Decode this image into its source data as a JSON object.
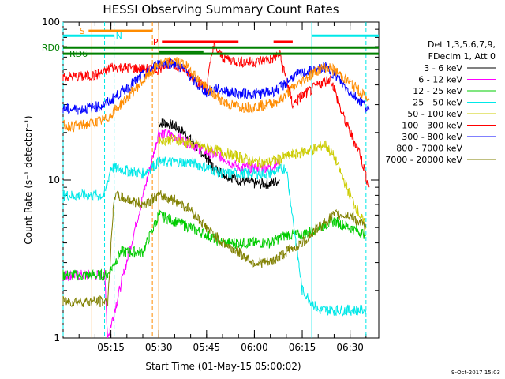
{
  "chart_data": {
    "type": "line",
    "title": "HESSI Observing Summary Count Rates",
    "xlabel": "Start Time (01-May-15 05:00:02)",
    "ylabel": "Count Rate (s⁻¹ detector⁻¹)",
    "y_scale": "log",
    "ylim": [
      1,
      100
    ],
    "xlim_minutes": [
      0,
      99
    ],
    "x_ticks": [
      {
        "label": "05:15",
        "minutes": 15
      },
      {
        "label": "05:30",
        "minutes": 30
      },
      {
        "label": "05:45",
        "minutes": 45
      },
      {
        "label": "06:00",
        "minutes": 60
      },
      {
        "label": "06:15",
        "minutes": 75
      },
      {
        "label": "06:30",
        "minutes": 90
      }
    ],
    "y_ticks": [
      {
        "label": "1",
        "value": 1
      },
      {
        "label": "10",
        "value": 10
      },
      {
        "label": "100",
        "value": 100
      }
    ],
    "legend_header": [
      "Det 1,3,5,6,7,9,",
      "FDecim 1, Att 0"
    ],
    "legend_position": "right",
    "series": [
      {
        "name": "3 - 6 keV",
        "color": "#000000",
        "points": [
          [
            30,
            23
          ],
          [
            32,
            23
          ],
          [
            35,
            22
          ],
          [
            38,
            20
          ],
          [
            40,
            18
          ],
          [
            42,
            16
          ],
          [
            45,
            14
          ],
          [
            47,
            12
          ],
          [
            50,
            11
          ],
          [
            55,
            10
          ],
          [
            60,
            9.5
          ],
          [
            65,
            9.5
          ],
          [
            68,
            10
          ]
        ]
      },
      {
        "name": "6 - 12 keV",
        "color": "#ff00ff",
        "points": [
          [
            0,
            2.5
          ],
          [
            5,
            2.5
          ],
          [
            10,
            2.5
          ],
          [
            13,
            2.5
          ],
          [
            14,
            1
          ],
          [
            30,
            20
          ],
          [
            35,
            19
          ],
          [
            40,
            17
          ],
          [
            45,
            15
          ],
          [
            50,
            14
          ],
          [
            55,
            12
          ],
          [
            60,
            12
          ],
          [
            65,
            12
          ],
          [
            68,
            13
          ]
        ]
      },
      {
        "name": "12 - 25 keV",
        "color": "#00cc00",
        "points": [
          [
            0,
            2.5
          ],
          [
            5,
            2.5
          ],
          [
            10,
            2.5
          ],
          [
            14,
            2.5
          ],
          [
            18,
            3.5
          ],
          [
            25,
            3.5
          ],
          [
            30,
            6
          ],
          [
            35,
            5.5
          ],
          [
            40,
            5
          ],
          [
            45,
            4.5
          ],
          [
            50,
            4
          ],
          [
            55,
            4
          ],
          [
            60,
            4
          ],
          [
            65,
            4
          ],
          [
            70,
            4.5
          ],
          [
            75,
            4.5
          ],
          [
            80,
            5
          ],
          [
            85,
            5.5
          ],
          [
            90,
            5
          ],
          [
            95,
            4.5
          ]
        ]
      },
      {
        "name": "25 - 50 keV",
        "color": "#00e8e8",
        "points": [
          [
            0,
            8
          ],
          [
            5,
            8
          ],
          [
            10,
            8
          ],
          [
            13,
            8
          ],
          [
            15,
            12
          ],
          [
            25,
            11
          ],
          [
            30,
            13
          ],
          [
            35,
            13
          ],
          [
            40,
            13
          ],
          [
            45,
            12
          ],
          [
            50,
            11
          ],
          [
            55,
            11
          ],
          [
            60,
            11
          ],
          [
            65,
            11
          ],
          [
            70,
            12
          ],
          [
            75,
            2
          ],
          [
            80,
            1.5
          ],
          [
            85,
            1.5
          ],
          [
            90,
            1.5
          ],
          [
            95,
            1.5
          ]
        ]
      },
      {
        "name": "50 - 100 keV",
        "color": "#cccc00",
        "points": [
          [
            30,
            18
          ],
          [
            35,
            18
          ],
          [
            40,
            17
          ],
          [
            45,
            16
          ],
          [
            50,
            15
          ],
          [
            55,
            14
          ],
          [
            60,
            13
          ],
          [
            65,
            13
          ],
          [
            70,
            14
          ],
          [
            75,
            15
          ],
          [
            80,
            16
          ],
          [
            82,
            17
          ],
          [
            85,
            14
          ],
          [
            90,
            8
          ],
          [
            95,
            5
          ]
        ]
      },
      {
        "name": "100 - 300 keV",
        "color": "#ff0000",
        "points": [
          [
            0,
            45
          ],
          [
            5,
            45
          ],
          [
            10,
            46
          ],
          [
            13,
            48
          ],
          [
            15,
            52
          ],
          [
            30,
            50
          ],
          [
            32,
            55
          ],
          [
            35,
            53
          ],
          [
            38,
            50
          ],
          [
            40,
            46
          ],
          [
            42,
            42
          ],
          [
            45,
            38
          ],
          [
            47,
            70
          ],
          [
            50,
            60
          ],
          [
            55,
            56
          ],
          [
            60,
            56
          ],
          [
            65,
            58
          ],
          [
            68,
            62
          ],
          [
            72,
            30
          ],
          [
            75,
            34
          ],
          [
            80,
            40
          ],
          [
            84,
            44
          ],
          [
            87,
            28
          ],
          [
            90,
            20
          ],
          [
            93,
            15
          ],
          [
            96,
            9
          ]
        ]
      },
      {
        "name": "300 - 800 keV",
        "color": "#0000ff",
        "points": [
          [
            0,
            28
          ],
          [
            5,
            28
          ],
          [
            10,
            29
          ],
          [
            13,
            30
          ],
          [
            15,
            32
          ],
          [
            30,
            55
          ],
          [
            35,
            55
          ],
          [
            38,
            50
          ],
          [
            40,
            45
          ],
          [
            42,
            40
          ],
          [
            45,
            36
          ],
          [
            48,
            38
          ],
          [
            52,
            36
          ],
          [
            56,
            35
          ],
          [
            60,
            35
          ],
          [
            65,
            36
          ],
          [
            68,
            38
          ],
          [
            72,
            45
          ],
          [
            76,
            48
          ],
          [
            80,
            50
          ],
          [
            82,
            52
          ],
          [
            85,
            47
          ],
          [
            88,
            40
          ],
          [
            90,
            36
          ],
          [
            93,
            32
          ],
          [
            96,
            28
          ]
        ]
      },
      {
        "name": "800 - 7000 keV",
        "color": "#ff8c00",
        "points": [
          [
            0,
            22
          ],
          [
            5,
            22
          ],
          [
            10,
            23
          ],
          [
            13,
            24
          ],
          [
            15,
            26
          ],
          [
            30,
            54
          ],
          [
            35,
            57
          ],
          [
            38,
            54
          ],
          [
            40,
            50
          ],
          [
            42,
            44
          ],
          [
            45,
            38
          ],
          [
            48,
            34
          ],
          [
            52,
            30
          ],
          [
            56,
            29
          ],
          [
            60,
            29
          ],
          [
            64,
            30
          ],
          [
            68,
            32
          ],
          [
            72,
            38
          ],
          [
            76,
            44
          ],
          [
            80,
            50
          ],
          [
            83,
            52
          ],
          [
            86,
            48
          ],
          [
            89,
            43
          ],
          [
            92,
            38
          ],
          [
            96,
            32
          ]
        ]
      },
      {
        "name": "7000 - 20000 keV",
        "color": "#808000",
        "points": [
          [
            0,
            1.7
          ],
          [
            5,
            1.7
          ],
          [
            10,
            1.7
          ],
          [
            14,
            1.7
          ],
          [
            16,
            8
          ],
          [
            25,
            7
          ],
          [
            30,
            8
          ],
          [
            35,
            7.5
          ],
          [
            40,
            6.5
          ],
          [
            45,
            5
          ],
          [
            50,
            4
          ],
          [
            55,
            3.5
          ],
          [
            60,
            3
          ],
          [
            65,
            3
          ],
          [
            70,
            3.5
          ],
          [
            75,
            4
          ],
          [
            80,
            5
          ],
          [
            85,
            6
          ],
          [
            90,
            6
          ],
          [
            95,
            5
          ]
        ]
      }
    ],
    "flags": [
      {
        "label": "S",
        "color": "#ff8c00",
        "value": 88,
        "start": 8,
        "end": 28
      },
      {
        "label": "N",
        "color": "#00e8e8",
        "value": 82,
        "start": 0,
        "end": 16
      },
      {
        "label": "P",
        "color": "#ff0000",
        "value": 75,
        "start": 31,
        "end": 55
      },
      {
        "label": "RD0",
        "color": "#008000",
        "value": 69,
        "start": 0,
        "end": 99
      },
      {
        "label": "RD6",
        "color": "#008000",
        "value": 63,
        "start": 0,
        "end": 99
      }
    ],
    "extra_flag_segments": [
      {
        "color": "#00e8e8",
        "value": 82,
        "start": 78,
        "end": 99
      },
      {
        "color": "#ff0000",
        "value": 75,
        "start": 66,
        "end": 72
      },
      {
        "color": "#008000",
        "value": 65,
        "start": 30,
        "end": 44
      }
    ],
    "vertical_markers": [
      {
        "minutes": 0,
        "color": "#00e8e8",
        "dash": true
      },
      {
        "minutes": 9,
        "color": "#ff8c00",
        "dash": false
      },
      {
        "minutes": 13,
        "color": "#00e8e8",
        "dash": true
      },
      {
        "minutes": 16,
        "color": "#00e8e8",
        "dash": true
      },
      {
        "minutes": 28,
        "color": "#ff8c00",
        "dash": true
      },
      {
        "minutes": 30,
        "color": "#ff8c00",
        "dash": false
      },
      {
        "minutes": 78,
        "color": "#00e8e8",
        "dash": false
      },
      {
        "minutes": 95,
        "color": "#00e8e8",
        "dash": true
      }
    ]
  },
  "timestamp": "9-Oct-2017 15:03"
}
